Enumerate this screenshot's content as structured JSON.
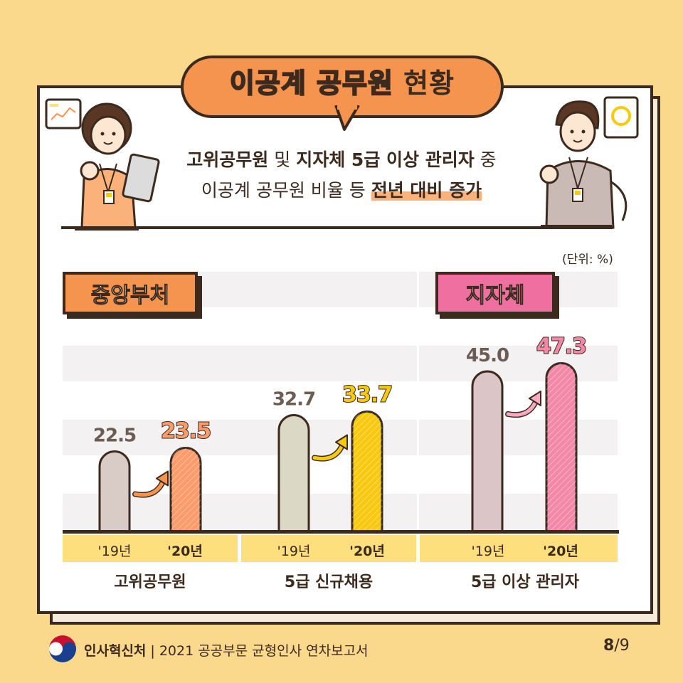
{
  "header": {
    "title_part1": "이공계 공무원",
    "title_part2": "현황",
    "subtitle_line1_bold1": "고위공무원",
    "subtitle_line1_mid": " 및 ",
    "subtitle_line1_bold2": "지자체 5급 이상 관리자",
    "subtitle_line1_end": " 중",
    "subtitle_line2_start": "이공계 공무원 비율 등 ",
    "subtitle_line2_highlight": "전년 대비 증가"
  },
  "unit_label": "(단위: %)",
  "sections": {
    "central": "중앙부처",
    "local": "지자체"
  },
  "chart_data": {
    "type": "bar",
    "categories": [
      "고위공무원",
      "5급 신규채용",
      "5급 이상 관리자"
    ],
    "x_ticks": [
      "'19년",
      "'20년"
    ],
    "series": [
      {
        "name": "'19년",
        "values": [
          22.5,
          32.7,
          45.0
        ]
      },
      {
        "name": "'20년",
        "values": [
          23.5,
          33.7,
          47.3
        ]
      }
    ],
    "value_labels_2019": [
      "22.5",
      "32.7",
      "45.0"
    ],
    "value_labels_2020": [
      "23.5",
      "33.7",
      "47.3"
    ],
    "ylim": [
      0,
      60
    ],
    "grid": true,
    "colors": {
      "prev": [
        "#d9ccc6",
        "#dcd8c6",
        "#dcc5c6"
      ],
      "curr": [
        "#fd9c6a",
        "#f8c90e",
        "#f287a8"
      ],
      "arrow": [
        "#f5944f",
        "#f8c90e",
        "#f6a9c0"
      ]
    }
  },
  "footer": {
    "org": "인사혁신처",
    "doc": "2021 공공부문 균형인사 연차보고서",
    "page_current": "8",
    "page_total": "/9"
  }
}
